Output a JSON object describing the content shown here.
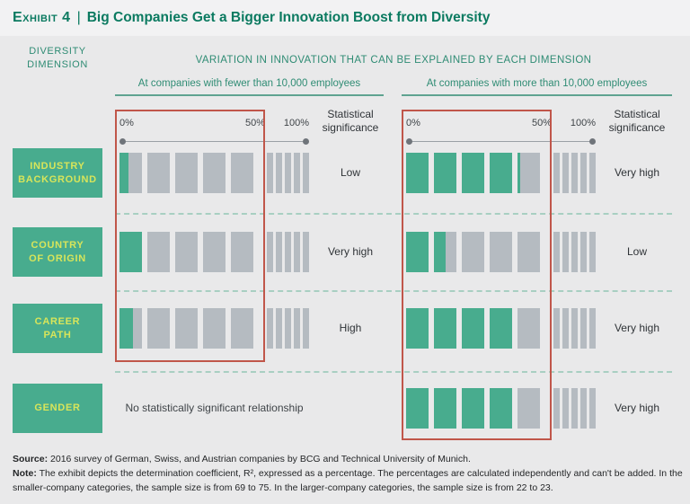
{
  "title": {
    "prefix": "Exhibit 4",
    "separator": "|",
    "text": "Big Companies Get a Bigger Innovation Boost from Diversity"
  },
  "left_header": {
    "line1": "DIVERSITY",
    "line2": "DIMENSION"
  },
  "main_header": "VARIATION IN INNOVATION THAT CAN BE EXPLAINED BY EACH DIMENSION",
  "groups": [
    {
      "header": "At companies with fewer than 10,000 employees",
      "sig_header": "Statistical significance"
    },
    {
      "header": "At companies with more than 10,000 employees",
      "sig_header": "Statistical significance"
    }
  ],
  "chart_data": {
    "type": "bar",
    "title": "Variation in innovation that can be explained by each dimension",
    "unit": "determination coefficient R², % of variation explained",
    "categories": [
      "Industry background",
      "Country of origin",
      "Career path",
      "Gender"
    ],
    "category_lines": [
      [
        "INDUSTRY",
        "BACKGROUND"
      ],
      [
        "COUNTRY",
        "OF ORIGIN"
      ],
      [
        "CAREER",
        "PATH"
      ],
      [
        "GENDER"
      ]
    ],
    "axis_ticks": [
      "0%",
      "50%",
      "100%"
    ],
    "xlim": [
      0,
      100
    ],
    "segment_size_pct": 10,
    "highlight_range_pct": [
      0,
      50
    ],
    "series": [
      {
        "name": "At companies with fewer than 10,000 employees",
        "values": [
          4,
          10,
          6,
          null
        ],
        "significance": [
          "Low",
          "Very high",
          "High",
          "No statistically significant relationship"
        ]
      },
      {
        "name": "At companies with more than 10,000 employees",
        "values": [
          41,
          15,
          40,
          40
        ],
        "significance": [
          "Very high",
          "Low",
          "Very high",
          "Very high"
        ]
      }
    ]
  },
  "footer": {
    "source_label": "Source:",
    "source_text": "2016 survey of German, Swiss, and Austrian companies by BCG and Technical University of Munich.",
    "note_label": "Note:",
    "note_text": "The exhibit depicts the determination coefficient, R², expressed as a percentage. The percentages are calculated independently and can't be added. In the smaller-company categories, the sample size is from 69 to 75. In the larger-company categories, the sample size is from 22 to 23."
  },
  "colors": {
    "title_green": "#0b7a60",
    "header_green": "#2f8c74",
    "bar_green": "#48ac8e",
    "bar_gray": "#b5bbc1",
    "dimension_box_bg": "#48ac8e",
    "dimension_box_text": "#d8e55a",
    "highlight_red": "#c0564a",
    "dashed_separator": "#a8cfc2",
    "background": "#e9e9ea"
  }
}
